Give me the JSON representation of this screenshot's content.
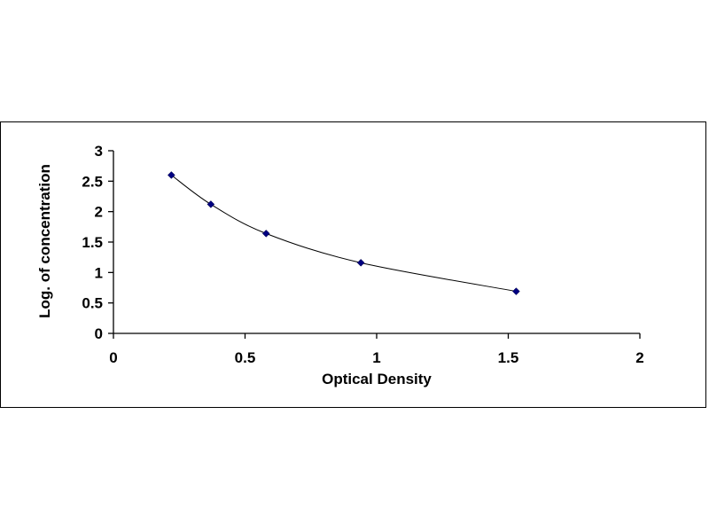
{
  "chart_data": {
    "type": "scatter",
    "title": "",
    "xlabel": "Optical Density",
    "ylabel": "Log. of concentration",
    "xlim": [
      0,
      2
    ],
    "ylim": [
      0,
      3
    ],
    "x_ticks": [
      "0",
      "0.5",
      "1",
      "1.5",
      "2"
    ],
    "y_ticks": [
      "0",
      "0.5",
      "1",
      "1.5",
      "2",
      "2.5",
      "3"
    ],
    "grid": false,
    "legend": "none",
    "trendline": "smooth curve through points",
    "marker_color": "#000080",
    "line_color": "#000000",
    "series": [
      {
        "x": [
          0.22,
          0.37,
          0.58,
          0.94,
          1.53
        ],
        "y": [
          2.6,
          2.12,
          1.64,
          1.16,
          0.69
        ]
      }
    ]
  }
}
